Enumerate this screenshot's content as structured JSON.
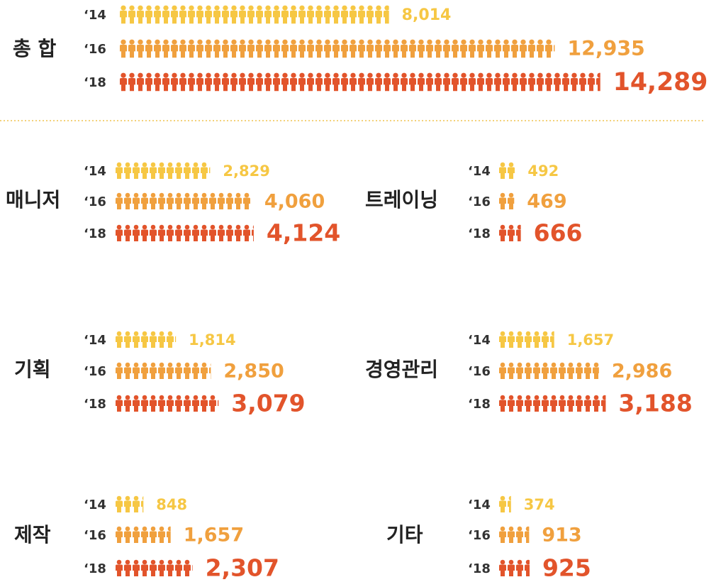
{
  "chart_data": [
    {
      "type": "pictogram",
      "title": "총 합",
      "categories": [
        "‘14",
        "‘16",
        "‘18"
      ],
      "values": [
        8014,
        12935,
        14289
      ],
      "value_labels": [
        "8,014",
        "12,935",
        "14,289"
      ],
      "colors": [
        "#f6c744",
        "#f0a03e",
        "#e2542b"
      ]
    },
    {
      "type": "pictogram",
      "title": "매니저",
      "categories": [
        "‘14",
        "‘16",
        "‘18"
      ],
      "values": [
        2829,
        4060,
        4124
      ],
      "value_labels": [
        "2,829",
        "4,060",
        "4,124"
      ],
      "colors": [
        "#f6c744",
        "#f0a03e",
        "#e2542b"
      ]
    },
    {
      "type": "pictogram",
      "title": "트레이닝",
      "categories": [
        "‘14",
        "‘16",
        "‘18"
      ],
      "values": [
        492,
        469,
        666
      ],
      "value_labels": [
        "492",
        "469",
        "666"
      ],
      "colors": [
        "#f6c744",
        "#f0a03e",
        "#e2542b"
      ]
    },
    {
      "type": "pictogram",
      "title": "기획",
      "categories": [
        "‘14",
        "‘16",
        "‘18"
      ],
      "values": [
        1814,
        2850,
        3079
      ],
      "value_labels": [
        "1,814",
        "2,850",
        "3,079"
      ],
      "colors": [
        "#f6c744",
        "#f0a03e",
        "#e2542b"
      ]
    },
    {
      "type": "pictogram",
      "title": "경영관리",
      "categories": [
        "‘14",
        "‘16",
        "‘18"
      ],
      "values": [
        1657,
        2986,
        3188
      ],
      "value_labels": [
        "1,657",
        "2,986",
        "3,188"
      ],
      "colors": [
        "#f6c744",
        "#f0a03e",
        "#e2542b"
      ]
    },
    {
      "type": "pictogram",
      "title": "제작",
      "categories": [
        "‘14",
        "‘16",
        "‘18"
      ],
      "values": [
        848,
        1657,
        2307
      ],
      "value_labels": [
        "848",
        "1,657",
        "2,307"
      ],
      "colors": [
        "#f6c744",
        "#f0a03e",
        "#e2542b"
      ]
    },
    {
      "type": "pictogram",
      "title": "기타",
      "categories": [
        "‘14",
        "‘16",
        "‘18"
      ],
      "values": [
        374,
        913,
        925
      ],
      "value_labels": [
        "374",
        "913",
        "925"
      ],
      "colors": [
        "#f6c744",
        "#f0a03e",
        "#e2542b"
      ]
    }
  ]
}
